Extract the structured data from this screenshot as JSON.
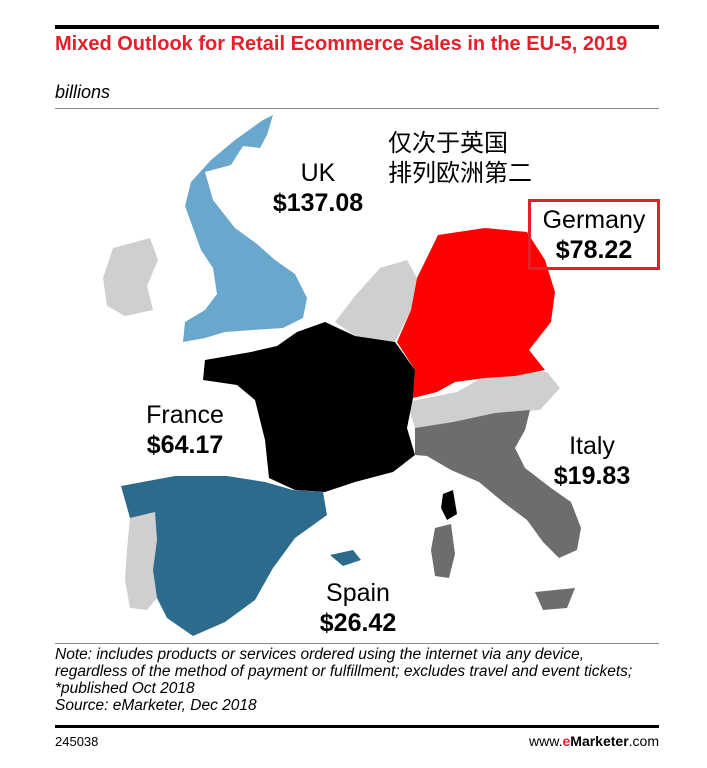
{
  "header": {
    "title": "Mixed Outlook for Retail Ecommerce Sales in the EU-5, 2019",
    "subtitle": "billions"
  },
  "annotation": "仅次于英国\n排列欧洲第二",
  "countries": [
    {
      "name": "UK",
      "value": "$137.08",
      "color": "#6aa7cc"
    },
    {
      "name": "Germany",
      "value": "$78.22",
      "color": "#ff0000"
    },
    {
      "name": "France",
      "value": "$64.17",
      "color": "#000000"
    },
    {
      "name": "Italy",
      "value": "$19.83",
      "color": "#6d6d6d"
    },
    {
      "name": "Spain",
      "value": "$26.42",
      "color": "#2c6b8c"
    }
  ],
  "colors": {
    "neighbor": "#cfcfcf",
    "title": "#e4202a",
    "highlight_box": "#e4202a"
  },
  "footer": {
    "note": "Note: includes products or services ordered using the internet via any device, regardless of the method of payment or fulfillment; excludes travel and event tickets; *published Oct 2018",
    "source": "Source: eMarketer, Dec 2018",
    "chart_id": "245038",
    "brand_prefix": "www.",
    "brand_e": "e",
    "brand_name": "Marketer",
    "brand_suffix": ".com"
  }
}
